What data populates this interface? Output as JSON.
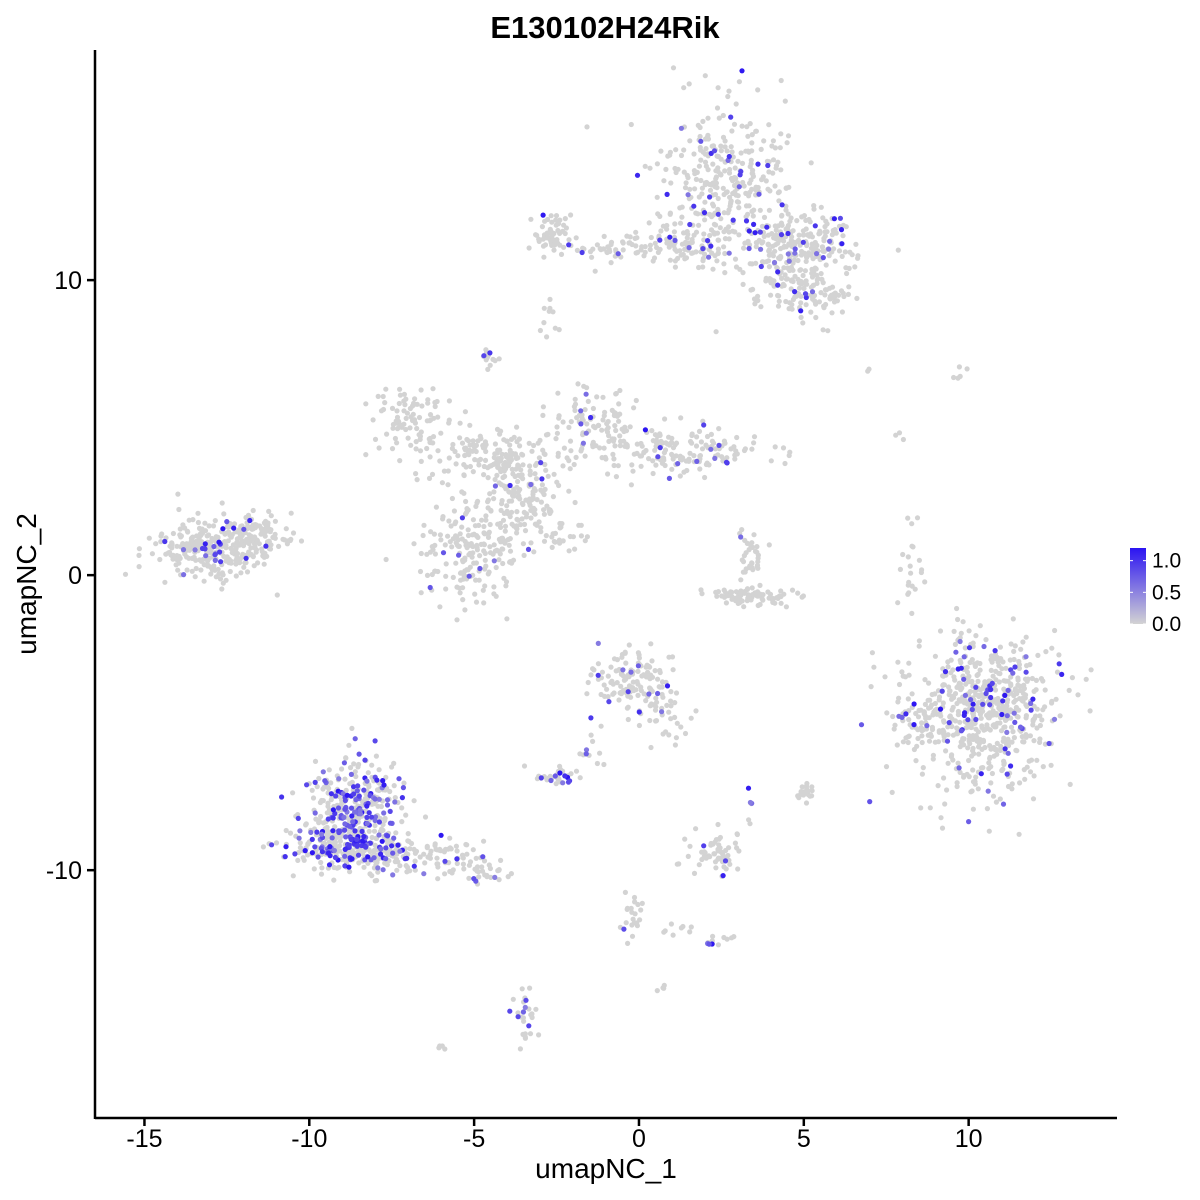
{
  "chart_data": {
    "type": "scatter",
    "title": "E130102H24Rik",
    "xlabel": "umapNC_1",
    "ylabel": "umapNC_2",
    "xlim": [
      -16.5,
      14.5
    ],
    "ylim": [
      -18.4,
      17.8
    ],
    "x_ticks": [
      -15,
      -10,
      -5,
      0,
      5,
      10
    ],
    "x_tick_labels": [
      "-15",
      "-10",
      "-5",
      "0",
      "5",
      "10"
    ],
    "y_ticks": [
      -10,
      0,
      10
    ],
    "y_tick_labels": [
      "-10",
      "0",
      "10"
    ],
    "grid": false,
    "legend": {
      "position": "right",
      "type": "colorbar",
      "range": [
        0.0,
        1.2
      ],
      "ticks": [
        0.0,
        0.5,
        1.0
      ],
      "tick_labels": [
        "0.0",
        "0.5",
        "1.0"
      ],
      "low_color": "#d3d3d3",
      "high_color": "#2b14f2"
    },
    "expression_color_scale": {
      "low": "#d3d3d3",
      "high": "#2b14f2"
    },
    "clusters": [
      {
        "cx": 2.7,
        "cy": 13.4,
        "sx": 1.2,
        "sy": 1.5,
        "n": 330,
        "frac": 0.08
      },
      {
        "cx": 4.9,
        "cy": 11.1,
        "sx": 1.0,
        "sy": 0.8,
        "n": 260,
        "frac": 0.08
      },
      {
        "cx": 5.1,
        "cy": 9.4,
        "sx": 0.8,
        "sy": 0.5,
        "n": 90,
        "frac": 0.07
      },
      {
        "cx": -2.5,
        "cy": 11.5,
        "sx": 0.4,
        "sy": 0.5,
        "n": 55,
        "frac": 0.02
      },
      {
        "cx": -0.5,
        "cy": 11.1,
        "sx": 1.2,
        "sy": 0.3,
        "n": 60,
        "frac": 0.04
      },
      {
        "cx": 1.5,
        "cy": 11.2,
        "sx": 0.8,
        "sy": 0.4,
        "n": 70,
        "frac": 0.05
      },
      {
        "cx": -2.7,
        "cy": 8.8,
        "sx": 0.2,
        "sy": 0.4,
        "n": 10,
        "frac": 0.0
      },
      {
        "cx": -4.5,
        "cy": 7.3,
        "sx": 0.18,
        "sy": 0.2,
        "n": 14,
        "frac": 0.2
      },
      {
        "cx": -6.9,
        "cy": 5.3,
        "sx": 0.8,
        "sy": 0.6,
        "n": 90,
        "frac": 0.02
      },
      {
        "cx": -1.4,
        "cy": 5.0,
        "sx": 0.8,
        "sy": 0.8,
        "n": 110,
        "frac": 0.05
      },
      {
        "cx": 1.2,
        "cy": 4.2,
        "sx": 1.5,
        "sy": 0.5,
        "n": 150,
        "frac": 0.06
      },
      {
        "cx": -4.3,
        "cy": 4.0,
        "sx": 1.1,
        "sy": 0.5,
        "n": 150,
        "frac": 0.03
      },
      {
        "cx": -3.5,
        "cy": 2.5,
        "sx": 0.7,
        "sy": 0.8,
        "n": 110,
        "frac": 0.03
      },
      {
        "cx": -5.0,
        "cy": 0.8,
        "sx": 1.0,
        "sy": 1.0,
        "n": 210,
        "frac": 0.05
      },
      {
        "cx": -2.1,
        "cy": 1.3,
        "sx": 0.6,
        "sy": 0.4,
        "n": 25,
        "frac": 0.02
      },
      {
        "cx": -13.0,
        "cy": 0.9,
        "sx": 1.0,
        "sy": 0.6,
        "n": 280,
        "frac": 0.08
      },
      {
        "cx": -11.5,
        "cy": 1.4,
        "sx": 0.6,
        "sy": 0.4,
        "n": 90,
        "frac": 0.01
      },
      {
        "cx": 3.3,
        "cy": 0.5,
        "sx": 0.3,
        "sy": 0.5,
        "n": 35,
        "frac": 0.08
      },
      {
        "cx": 3.4,
        "cy": -0.7,
        "sx": 0.8,
        "sy": 0.2,
        "n": 80,
        "frac": 0.0
      },
      {
        "cx": 8.3,
        "cy": 0.2,
        "sx": 0.2,
        "sy": 0.9,
        "n": 22,
        "frac": 0.0
      },
      {
        "cx": 10.4,
        "cy": -4.6,
        "sx": 1.3,
        "sy": 1.4,
        "n": 650,
        "frac": 0.11
      },
      {
        "cx": 8.6,
        "cy": -5.0,
        "sx": 0.4,
        "sy": 0.5,
        "n": 40,
        "frac": 0.05
      },
      {
        "cx": -0.2,
        "cy": -3.6,
        "sx": 0.7,
        "sy": 0.6,
        "n": 130,
        "frac": 0.1
      },
      {
        "cx": 0.9,
        "cy": -4.8,
        "sx": 0.4,
        "sy": 0.5,
        "n": 30,
        "frac": 0.06
      },
      {
        "cx": -1.5,
        "cy": -5.5,
        "sx": 0.2,
        "sy": 0.8,
        "n": 12,
        "frac": 0.2
      },
      {
        "cx": -2.5,
        "cy": -6.8,
        "sx": 0.4,
        "sy": 0.2,
        "n": 35,
        "frac": 0.2
      },
      {
        "cx": -8.6,
        "cy": -7.8,
        "sx": 0.9,
        "sy": 1.0,
        "n": 330,
        "frac": 0.42
      },
      {
        "cx": -9.3,
        "cy": -9.2,
        "sx": 0.8,
        "sy": 0.5,
        "n": 180,
        "frac": 0.32
      },
      {
        "cx": -7.9,
        "cy": -9.4,
        "sx": 0.7,
        "sy": 0.4,
        "n": 100,
        "frac": 0.18
      },
      {
        "cx": -6.0,
        "cy": -9.5,
        "sx": 0.8,
        "sy": 0.4,
        "n": 65,
        "frac": 0.12
      },
      {
        "cx": -4.7,
        "cy": -10.1,
        "sx": 0.5,
        "sy": 0.3,
        "n": 30,
        "frac": 0.1
      },
      {
        "cx": 2.4,
        "cy": -9.4,
        "sx": 0.5,
        "sy": 0.5,
        "n": 60,
        "frac": 0.06
      },
      {
        "cx": 5.0,
        "cy": -7.4,
        "sx": 0.2,
        "sy": 0.2,
        "n": 18,
        "frac": 0.0
      },
      {
        "cx": 3.4,
        "cy": -7.7,
        "sx": 0.1,
        "sy": 0.3,
        "n": 6,
        "frac": 0.2
      },
      {
        "cx": -0.2,
        "cy": -11.5,
        "sx": 0.2,
        "sy": 0.7,
        "n": 22,
        "frac": 0.15
      },
      {
        "cx": 2.4,
        "cy": -12.4,
        "sx": 0.25,
        "sy": 0.15,
        "n": 12,
        "frac": 0.25
      },
      {
        "cx": 1.4,
        "cy": -12.0,
        "sx": 0.4,
        "sy": 0.15,
        "n": 8,
        "frac": 0.0
      },
      {
        "cx": -3.4,
        "cy": -14.8,
        "sx": 0.25,
        "sy": 0.6,
        "n": 28,
        "frac": 0.25
      },
      {
        "cx": 0.7,
        "cy": -14.0,
        "sx": 0.1,
        "sy": 0.1,
        "n": 4,
        "frac": 0.0
      },
      {
        "cx": -6.0,
        "cy": -16.0,
        "sx": 0.1,
        "sy": 0.1,
        "n": 4,
        "frac": 0.0
      },
      {
        "cx": 9.7,
        "cy": 6.8,
        "sx": 0.2,
        "sy": 0.2,
        "n": 5,
        "frac": 0.0
      },
      {
        "cx": 7.8,
        "cy": 4.7,
        "sx": 0.15,
        "sy": 0.15,
        "n": 3,
        "frac": 0.0
      },
      {
        "cx": 7.0,
        "cy": 6.9,
        "sx": 0.1,
        "sy": 0.1,
        "n": 2,
        "frac": 0.0
      }
    ]
  }
}
